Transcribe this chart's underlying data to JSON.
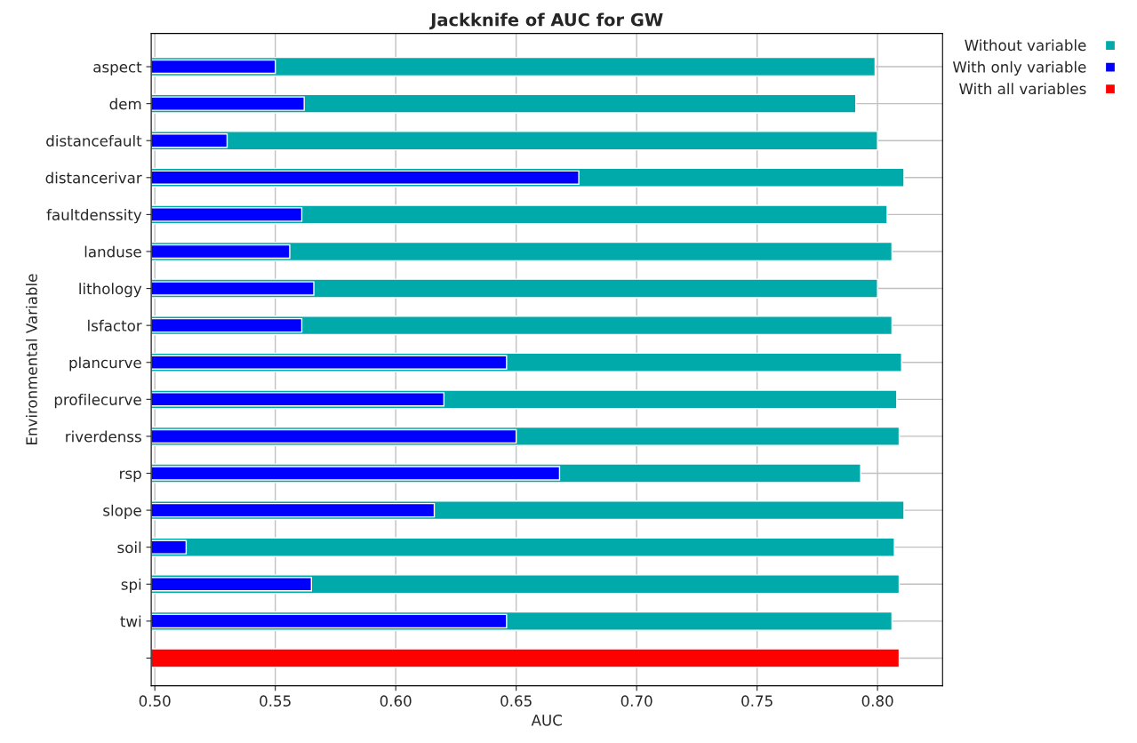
{
  "chart_data": {
    "type": "bar",
    "orientation": "horizontal",
    "title": "Jackknife of AUC for GW",
    "xlabel": "AUC",
    "ylabel": "Environmental Variable",
    "categories": [
      "aspect",
      "dem",
      "distancefault",
      "distancerivar",
      "faultdenssity",
      "landuse",
      "lithology",
      "lsfactor",
      "plancurve",
      "profilecurve",
      "riverdenss",
      "rsp",
      "slope",
      "soil",
      "spi",
      "twi",
      null
    ],
    "series": [
      {
        "name": "Without variable",
        "color": "#00aaaa",
        "values": [
          0.799,
          0.791,
          0.8,
          0.811,
          0.804,
          0.806,
          0.8,
          0.806,
          0.81,
          0.808,
          0.809,
          0.793,
          0.811,
          0.807,
          0.809,
          0.806,
          null
        ]
      },
      {
        "name": "With only variable",
        "color": "#0000ff",
        "values": [
          0.55,
          0.562,
          0.53,
          0.676,
          0.561,
          0.556,
          0.566,
          0.561,
          0.646,
          0.62,
          0.65,
          0.668,
          0.616,
          0.513,
          0.565,
          0.646,
          null
        ]
      },
      {
        "name": "With all variables",
        "color": "#ff0000",
        "values": [
          null,
          null,
          null,
          null,
          null,
          null,
          null,
          null,
          null,
          null,
          null,
          null,
          null,
          null,
          null,
          null,
          0.809
        ]
      }
    ],
    "xlim": [
      0.4985,
      0.827
    ],
    "xticks": [
      {
        "value": 0.5,
        "label": "0.50"
      },
      0.55,
      {
        "value": 0.6,
        "label": "0.60"
      },
      0.65,
      {
        "value": 0.7,
        "label": "0.70"
      },
      0.75,
      {
        "value": 0.8,
        "label": "0.80"
      }
    ],
    "grid": true,
    "legend": "top right"
  }
}
